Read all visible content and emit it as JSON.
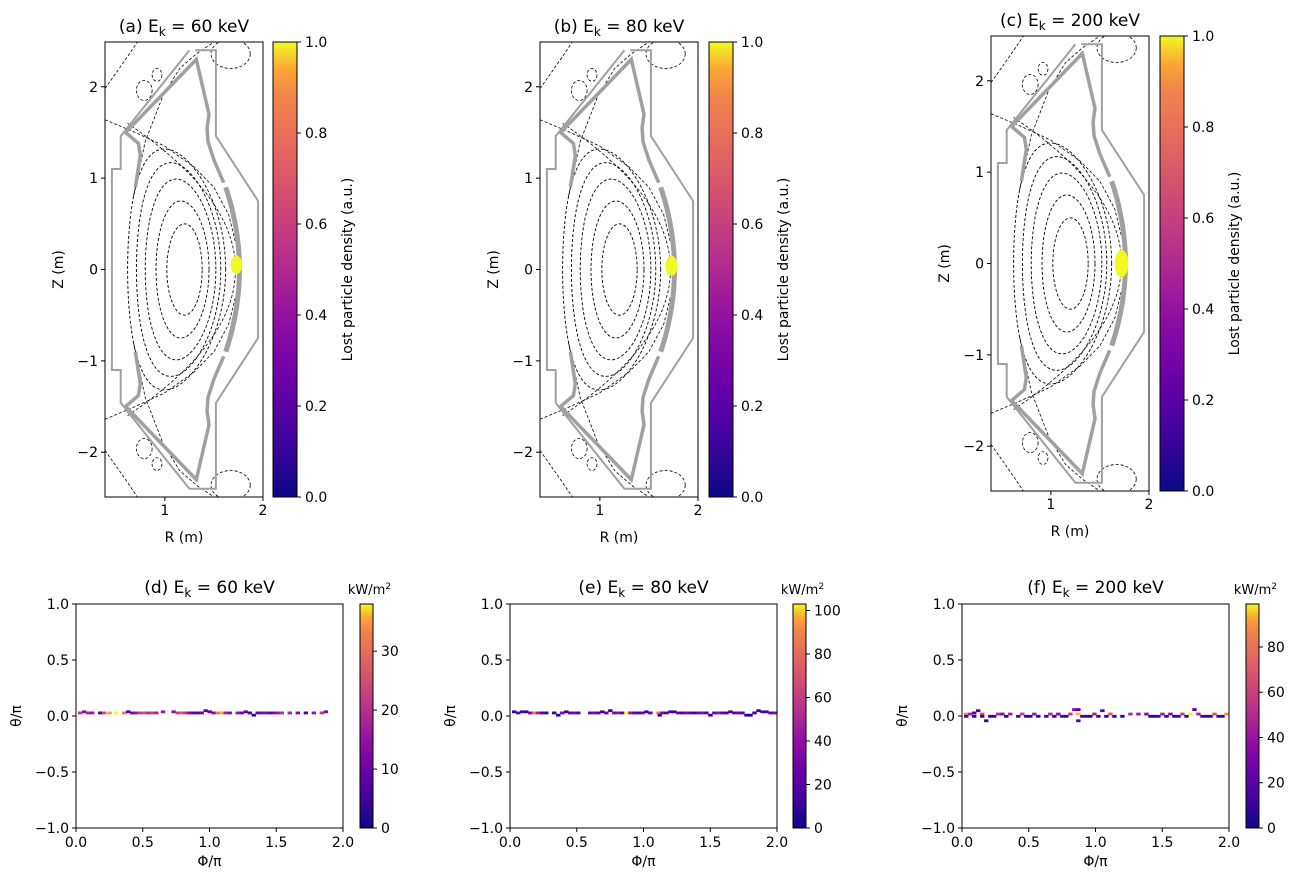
{
  "chart_data": [
    {
      "id": "a",
      "type": "heatmap",
      "title": "(a) E_k = 60 keV",
      "title_prefix": "(a) E",
      "title_sub": "k",
      "title_suffix": " = 60 keV",
      "xlabel": "R (m)",
      "ylabel": "Z (m)",
      "xlim": [
        0.39,
        2.0
      ],
      "ylim": [
        -2.49,
        2.49
      ],
      "xticks": [
        1,
        2
      ],
      "yticks": [
        -2,
        -1,
        0,
        1,
        2
      ],
      "colorbar": {
        "label": "Lost particle density (a.u.)",
        "range": [
          0.0,
          1.0
        ],
        "ticks": [
          "0.0",
          "0.2",
          "0.4",
          "0.6",
          "0.8",
          "1.0"
        ],
        "colormap": "plasma"
      },
      "hotspot": {
        "R": 1.73,
        "Z": 0.05,
        "dR": 0.06,
        "dZ": 0.1,
        "value": 1.0
      }
    },
    {
      "id": "b",
      "type": "heatmap",
      "title": "(b) E_k = 80 keV",
      "title_prefix": "(b) E",
      "title_sub": "k",
      "title_suffix": " = 80 keV",
      "xlabel": "R (m)",
      "ylabel": "Z (m)",
      "xlim": [
        0.39,
        2.0
      ],
      "ylim": [
        -2.49,
        2.49
      ],
      "xticks": [
        1,
        2
      ],
      "yticks": [
        -2,
        -1,
        0,
        1,
        2
      ],
      "colorbar": {
        "label": "Lost particle density (a.u.)",
        "range": [
          0.0,
          1.0
        ],
        "ticks": [
          "0.0",
          "0.2",
          "0.4",
          "0.6",
          "0.8",
          "1.0"
        ],
        "colormap": "plasma"
      },
      "hotspot": {
        "R": 1.73,
        "Z": 0.04,
        "dR": 0.06,
        "dZ": 0.11,
        "value": 1.0
      }
    },
    {
      "id": "c",
      "type": "heatmap",
      "title": "(c) E_k = 200 keV",
      "title_prefix": "(c) E",
      "title_sub": "k",
      "title_suffix": " = 200 keV",
      "xlabel": "R (m)",
      "ylabel": "Z (m)",
      "xlim": [
        0.39,
        2.0
      ],
      "ylim": [
        -2.49,
        2.49
      ],
      "xticks": [
        1,
        2
      ],
      "yticks": [
        -2,
        -1,
        0,
        1,
        2
      ],
      "colorbar": {
        "label": "Lost particle density (a.u.)",
        "range": [
          0.0,
          1.0
        ],
        "ticks": [
          "0.0",
          "0.2",
          "0.4",
          "0.6",
          "0.8",
          "1.0"
        ],
        "colormap": "plasma"
      },
      "hotspot": {
        "R": 1.72,
        "Z": 0.0,
        "dR": 0.07,
        "dZ": 0.15,
        "value": 1.0
      }
    },
    {
      "id": "d",
      "type": "heatmap",
      "title": "(d) E_k = 60 keV",
      "title_prefix": "(d) E",
      "title_sub": "k",
      "title_suffix": " = 60 keV",
      "xlabel": "Φ/π",
      "ylabel": "θ/π",
      "xlim": [
        0.0,
        2.0
      ],
      "ylim": [
        -1.0,
        1.0
      ],
      "xticks": [
        "0.0",
        "0.5",
        "1.0",
        "1.5",
        "2.0"
      ],
      "yticks": [
        "−1.0",
        "−0.5",
        "0.0",
        "0.5",
        "1.0"
      ],
      "colorbar": {
        "unit_prefix": "kW/m",
        "unit_sup": "2",
        "range": [
          0,
          38
        ],
        "ticks": [
          0,
          10,
          20,
          30
        ],
        "colormap": "plasma"
      },
      "cells": [
        [
          0.03,
          0.03,
          18
        ],
        [
          0.06,
          0.04,
          12
        ],
        [
          0.09,
          0.03,
          16
        ],
        [
          0.12,
          0.03,
          14
        ],
        [
          0.18,
          0.03,
          8
        ],
        [
          0.21,
          0.03,
          22
        ],
        [
          0.25,
          0.03,
          32
        ],
        [
          0.3,
          0.03,
          38
        ],
        [
          0.36,
          0.03,
          28
        ],
        [
          0.39,
          0.04,
          6
        ],
        [
          0.42,
          0.03,
          10
        ],
        [
          0.45,
          0.03,
          14
        ],
        [
          0.48,
          0.03,
          20
        ],
        [
          0.51,
          0.03,
          22
        ],
        [
          0.54,
          0.03,
          18
        ],
        [
          0.57,
          0.03,
          20
        ],
        [
          0.6,
          0.03,
          16
        ],
        [
          0.65,
          0.04,
          14
        ],
        [
          0.73,
          0.04,
          12
        ],
        [
          0.76,
          0.03,
          20
        ],
        [
          0.79,
          0.03,
          24
        ],
        [
          0.82,
          0.03,
          18
        ],
        [
          0.85,
          0.03,
          10
        ],
        [
          0.88,
          0.03,
          8
        ],
        [
          0.91,
          0.03,
          6
        ],
        [
          0.94,
          0.03,
          10
        ],
        [
          0.97,
          0.05,
          8
        ],
        [
          1.0,
          0.04,
          6
        ],
        [
          1.03,
          0.03,
          12
        ],
        [
          1.06,
          0.03,
          28
        ],
        [
          1.09,
          0.03,
          34
        ],
        [
          1.12,
          0.03,
          16
        ],
        [
          1.15,
          0.03,
          12
        ],
        [
          1.21,
          0.03,
          14
        ],
        [
          1.24,
          0.03,
          10
        ],
        [
          1.27,
          0.04,
          8
        ],
        [
          1.3,
          0.03,
          6
        ],
        [
          1.33,
          0.01,
          4
        ],
        [
          1.36,
          0.03,
          8
        ],
        [
          1.39,
          0.03,
          10
        ],
        [
          1.42,
          0.03,
          12
        ],
        [
          1.45,
          0.03,
          8
        ],
        [
          1.48,
          0.03,
          10
        ],
        [
          1.51,
          0.03,
          14
        ],
        [
          1.54,
          0.03,
          18
        ],
        [
          1.6,
          0.03,
          16
        ],
        [
          1.66,
          0.03,
          12
        ],
        [
          1.72,
          0.03,
          6
        ],
        [
          1.78,
          0.03,
          14
        ],
        [
          1.84,
          0.03,
          20
        ],
        [
          1.87,
          0.04,
          10
        ]
      ]
    },
    {
      "id": "e",
      "type": "heatmap",
      "title": "(e) E_k = 80 keV",
      "title_prefix": "(e) E",
      "title_sub": "k",
      "title_suffix": " = 80 keV",
      "xlabel": "Φ/π",
      "ylabel": "θ/π",
      "xlim": [
        0.0,
        2.0
      ],
      "ylim": [
        -1.0,
        1.0
      ],
      "xticks": [
        "0.0",
        "0.5",
        "1.0",
        "1.5",
        "2.0"
      ],
      "yticks": [
        "−1.0",
        "−0.5",
        "0.0",
        "0.5",
        "1.0"
      ],
      "colorbar": {
        "unit_prefix": "kW/m",
        "unit_sup": "2",
        "range": [
          0,
          103
        ],
        "ticks": [
          0,
          20,
          40,
          60,
          80,
          100
        ],
        "colormap": "plasma"
      },
      "cells": [
        [
          0.03,
          0.04,
          8
        ],
        [
          0.06,
          0.03,
          20
        ],
        [
          0.09,
          0.04,
          14
        ],
        [
          0.12,
          0.04,
          10
        ],
        [
          0.15,
          0.03,
          30
        ],
        [
          0.18,
          0.03,
          72
        ],
        [
          0.21,
          0.03,
          40
        ],
        [
          0.24,
          0.03,
          18
        ],
        [
          0.27,
          0.03,
          10
        ],
        [
          0.33,
          0.03,
          8
        ],
        [
          0.36,
          0.01,
          4
        ],
        [
          0.39,
          0.03,
          30
        ],
        [
          0.42,
          0.04,
          12
        ],
        [
          0.45,
          0.03,
          20
        ],
        [
          0.48,
          0.03,
          28
        ],
        [
          0.51,
          0.03,
          16
        ],
        [
          0.6,
          0.03,
          22
        ],
        [
          0.63,
          0.03,
          30
        ],
        [
          0.66,
          0.03,
          18
        ],
        [
          0.69,
          0.04,
          12
        ],
        [
          0.72,
          0.03,
          24
        ],
        [
          0.75,
          0.05,
          10
        ],
        [
          0.78,
          0.03,
          26
        ],
        [
          0.81,
          0.03,
          34
        ],
        [
          0.84,
          0.03,
          20
        ],
        [
          0.87,
          0.03,
          103
        ],
        [
          0.9,
          0.03,
          40
        ],
        [
          0.93,
          0.03,
          22
        ],
        [
          0.96,
          0.03,
          16
        ],
        [
          0.99,
          0.03,
          24
        ],
        [
          1.02,
          0.04,
          12
        ],
        [
          1.05,
          0.03,
          20
        ],
        [
          1.11,
          0.03,
          80
        ],
        [
          1.12,
          0.01,
          6
        ],
        [
          1.14,
          0.03,
          30
        ],
        [
          1.17,
          0.03,
          18
        ],
        [
          1.2,
          0.04,
          14
        ],
        [
          1.23,
          0.04,
          10
        ],
        [
          1.26,
          0.03,
          22
        ],
        [
          1.29,
          0.03,
          16
        ],
        [
          1.32,
          0.03,
          28
        ],
        [
          1.35,
          0.03,
          20
        ],
        [
          1.38,
          0.03,
          14
        ],
        [
          1.41,
          0.03,
          26
        ],
        [
          1.44,
          0.03,
          30
        ],
        [
          1.47,
          0.03,
          18
        ],
        [
          1.5,
          0.01,
          6
        ],
        [
          1.53,
          0.03,
          24
        ],
        [
          1.56,
          0.03,
          36
        ],
        [
          1.59,
          0.03,
          22
        ],
        [
          1.62,
          0.03,
          16
        ],
        [
          1.65,
          0.04,
          12
        ],
        [
          1.68,
          0.03,
          20
        ],
        [
          1.71,
          0.03,
          26
        ],
        [
          1.74,
          0.03,
          18
        ],
        [
          1.77,
          0.01,
          6
        ],
        [
          1.8,
          0.01,
          4
        ],
        [
          1.83,
          0.03,
          14
        ],
        [
          1.86,
          0.05,
          10
        ],
        [
          1.89,
          0.04,
          12
        ],
        [
          1.92,
          0.04,
          16
        ],
        [
          1.95,
          0.03,
          22
        ],
        [
          1.98,
          0.03,
          30
        ]
      ]
    },
    {
      "id": "f",
      "type": "heatmap",
      "title": "(f) E_k = 200 keV",
      "title_prefix": "(f) E",
      "title_sub": "k",
      "title_suffix": " = 200 keV",
      "xlabel": "Φ/π",
      "ylabel": "θ/π",
      "xlim": [
        0.0,
        2.0
      ],
      "ylim": [
        -1.0,
        1.0
      ],
      "xticks": [
        "0.0",
        "0.5",
        "1.0",
        "1.5",
        "2.0"
      ],
      "yticks": [
        "−1.0",
        "−0.5",
        "0.0",
        "0.5",
        "1.0"
      ],
      "colorbar": {
        "unit_prefix": "kW/m",
        "unit_sup": "2",
        "range": [
          0,
          99
        ],
        "ticks": [
          0,
          20,
          40,
          60,
          80
        ],
        "colormap": "plasma"
      },
      "cells": [
        [
          0.03,
          0.02,
          80
        ],
        [
          0.03,
          0.0,
          10
        ],
        [
          0.06,
          0.02,
          40
        ],
        [
          0.09,
          0.03,
          20
        ],
        [
          0.09,
          0.0,
          8
        ],
        [
          0.12,
          0.05,
          16
        ],
        [
          0.15,
          0.02,
          60
        ],
        [
          0.15,
          0.0,
          6
        ],
        [
          0.18,
          -0.04,
          12
        ],
        [
          0.21,
          0.0,
          8
        ],
        [
          0.24,
          0.0,
          10
        ],
        [
          0.27,
          0.02,
          44
        ],
        [
          0.3,
          0.02,
          30
        ],
        [
          0.33,
          0.0,
          8
        ],
        [
          0.36,
          0.02,
          40
        ],
        [
          0.42,
          0.0,
          10
        ],
        [
          0.45,
          0.02,
          50
        ],
        [
          0.48,
          0.0,
          8
        ],
        [
          0.51,
          0.0,
          10
        ],
        [
          0.54,
          0.02,
          36
        ],
        [
          0.57,
          0.0,
          8
        ],
        [
          0.63,
          0.0,
          10
        ],
        [
          0.66,
          0.02,
          44
        ],
        [
          0.69,
          0.0,
          8
        ],
        [
          0.72,
          0.02,
          30
        ],
        [
          0.75,
          0.0,
          12
        ],
        [
          0.78,
          0.0,
          8
        ],
        [
          0.81,
          0.02,
          50
        ],
        [
          0.84,
          0.06,
          30
        ],
        [
          0.87,
          0.06,
          20
        ],
        [
          0.87,
          0.02,
          90
        ],
        [
          0.87,
          -0.04,
          14
        ],
        [
          0.9,
          0.0,
          10
        ],
        [
          0.93,
          0.0,
          12
        ],
        [
          0.96,
          0.0,
          8
        ],
        [
          0.99,
          0.02,
          40
        ],
        [
          1.02,
          0.0,
          10
        ],
        [
          1.05,
          0.05,
          16
        ],
        [
          1.08,
          0.0,
          8
        ],
        [
          1.11,
          0.02,
          60
        ],
        [
          1.14,
          0.0,
          10
        ],
        [
          1.2,
          0.0,
          8
        ],
        [
          1.26,
          0.02,
          44
        ],
        [
          1.32,
          0.02,
          36
        ],
        [
          1.38,
          0.02,
          30
        ],
        [
          1.41,
          0.0,
          10
        ],
        [
          1.44,
          0.0,
          8
        ],
        [
          1.47,
          0.0,
          12
        ],
        [
          1.5,
          0.02,
          40
        ],
        [
          1.53,
          0.0,
          10
        ],
        [
          1.56,
          0.02,
          30
        ],
        [
          1.59,
          0.0,
          8
        ],
        [
          1.62,
          0.0,
          12
        ],
        [
          1.65,
          0.02,
          50
        ],
        [
          1.68,
          0.0,
          8
        ],
        [
          1.71,
          0.02,
          98
        ],
        [
          1.74,
          0.06,
          16
        ],
        [
          1.77,
          0.02,
          40
        ],
        [
          1.8,
          0.0,
          10
        ],
        [
          1.83,
          0.0,
          8
        ],
        [
          1.86,
          0.0,
          12
        ],
        [
          1.89,
          0.02,
          60
        ],
        [
          1.92,
          0.0,
          10
        ],
        [
          1.95,
          0.0,
          8
        ],
        [
          1.98,
          0.02,
          80
        ]
      ]
    }
  ]
}
